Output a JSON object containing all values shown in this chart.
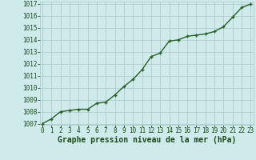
{
  "x": [
    0,
    1,
    2,
    3,
    4,
    5,
    6,
    7,
    8,
    9,
    10,
    11,
    12,
    13,
    14,
    15,
    16,
    17,
    18,
    19,
    20,
    21,
    22,
    23
  ],
  "y": [
    1007.0,
    1007.4,
    1008.0,
    1008.1,
    1008.2,
    1008.2,
    1008.7,
    1008.8,
    1009.4,
    1010.1,
    1010.7,
    1011.5,
    1012.6,
    1012.9,
    1013.9,
    1014.0,
    1014.3,
    1014.4,
    1014.5,
    1014.7,
    1015.1,
    1015.9,
    1016.7,
    1017.0
  ],
  "line_color": "#2a5f2a",
  "marker_color": "#2a5f2a",
  "bg_color": "#ceeaeb",
  "grid_color": "#b0cccc",
  "xlabel": "Graphe pression niveau de la mer (hPa)",
  "xlabel_color": "#1a4a1a",
  "tick_color": "#1a4a1a",
  "ylim": [
    1007,
    1017
  ],
  "xlim": [
    -0.3,
    23.3
  ],
  "yticks": [
    1007,
    1008,
    1009,
    1010,
    1011,
    1012,
    1013,
    1014,
    1015,
    1016,
    1017
  ],
  "xticks": [
    0,
    1,
    2,
    3,
    4,
    5,
    6,
    7,
    8,
    9,
    10,
    11,
    12,
    13,
    14,
    15,
    16,
    17,
    18,
    19,
    20,
    21,
    22,
    23
  ],
  "xlabel_fontsize": 7,
  "tick_fontsize": 5.5,
  "line_width": 1.0,
  "marker_size": 3.5
}
